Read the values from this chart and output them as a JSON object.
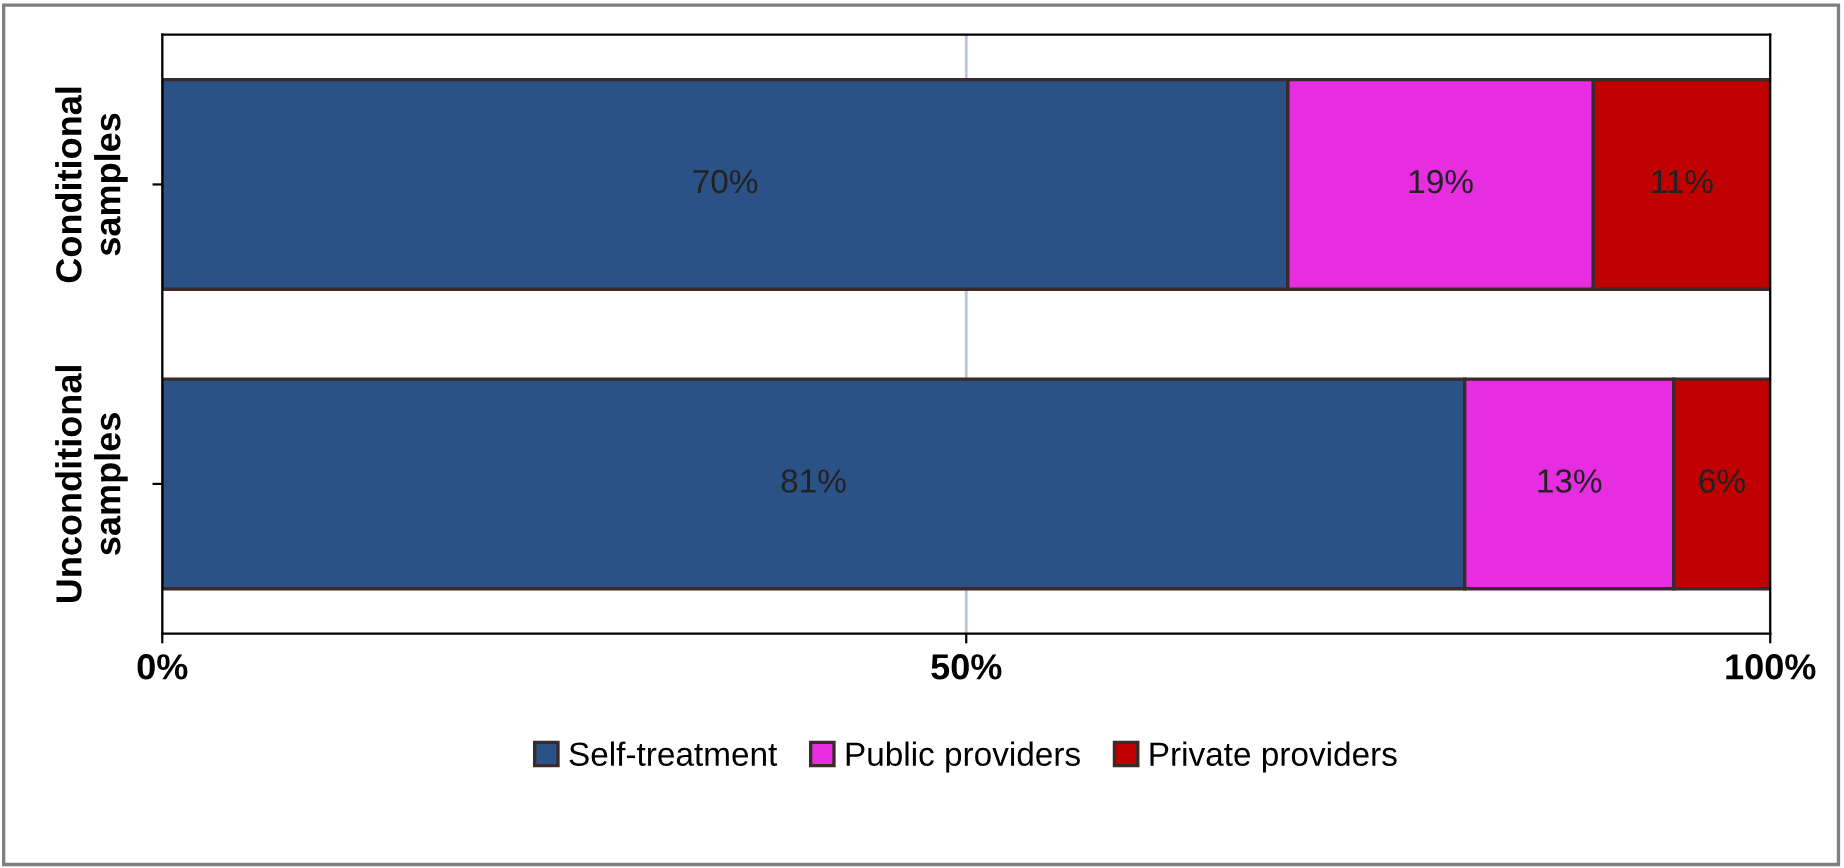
{
  "chart_data": {
    "type": "bar",
    "orientation": "horizontal",
    "stacked": true,
    "categories": [
      "Conditional samples",
      "Unconditional samples"
    ],
    "series": [
      {
        "name": "Self-treatment",
        "color": "#2a5286",
        "values": [
          70,
          81
        ],
        "value_labels": [
          "70%",
          "81%"
        ]
      },
      {
        "name": "Public providers",
        "color": "#e62ee0",
        "values": [
          19,
          13
        ],
        "value_labels": [
          "19%",
          "13%"
        ]
      },
      {
        "name": "Private providers",
        "color": "#c00000",
        "values": [
          11,
          6
        ],
        "value_labels": [
          "11%",
          "6%"
        ]
      }
    ],
    "xlim": [
      0,
      100
    ],
    "xticks": [
      {
        "value": 0,
        "label": "0%"
      },
      {
        "value": 50,
        "label": "50%"
      },
      {
        "value": 100,
        "label": "100%"
      }
    ],
    "grid": "x",
    "legend": "bottom"
  }
}
